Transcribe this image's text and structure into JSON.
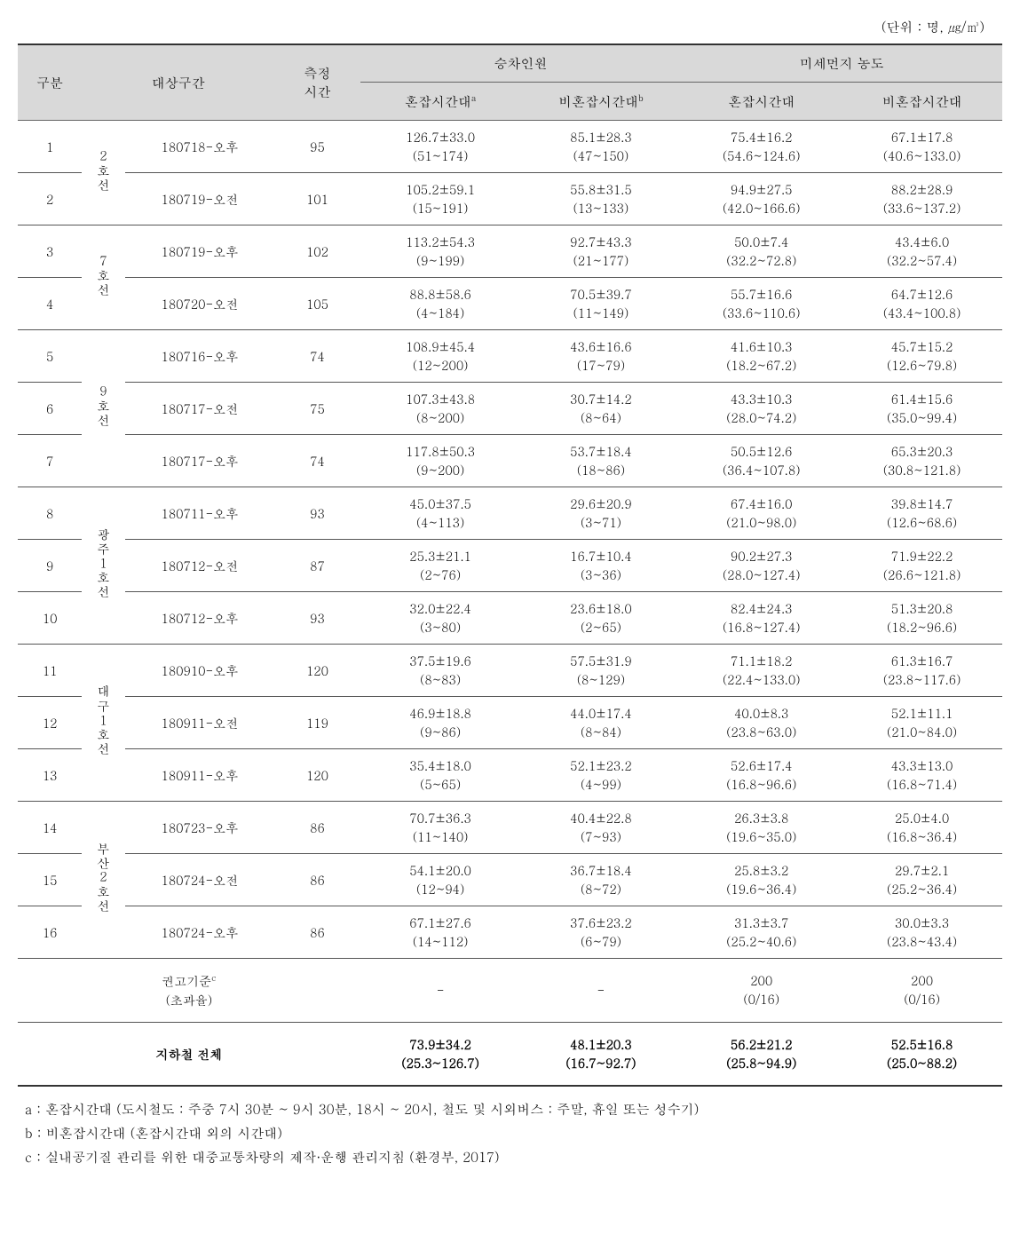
{
  "unit_label": "(단위 : 명, ㎍/㎥)",
  "headers": {
    "category": "구분",
    "section": "대상구간",
    "measure_time": "측정\n시간",
    "passengers": "승차인원",
    "pm": "미세먼지 농도",
    "peak_sup_a": "혼잡시간대",
    "sup_a": "a",
    "offpeak_sup_b": "비혼잡시간대",
    "sup_b": "b",
    "peak": "혼잡시간대",
    "offpeak": "비혼잡시간대"
  },
  "lines": {
    "l2": "2호선",
    "l7": "7호선",
    "l9": "9호선",
    "gj1": "광주1호선",
    "dg1": "대구1호선",
    "bs2": "부산2호선"
  },
  "rows": [
    {
      "no": "1",
      "session": "180718-오후",
      "time": "95",
      "p_peak_top": "126.7±33.0",
      "p_peak_bot": "(51~174)",
      "p_off_top": "85.1±28.3",
      "p_off_bot": "(47~150)",
      "pm_peak_top": "75.4±16.2",
      "pm_peak_bot": "(54.6~124.6)",
      "pm_off_top": "67.1±17.8",
      "pm_off_bot": "(40.6~133.0)"
    },
    {
      "no": "2",
      "session": "180719-오전",
      "time": "101",
      "p_peak_top": "105.2±59.1",
      "p_peak_bot": "(15~191)",
      "p_off_top": "55.8±31.5",
      "p_off_bot": "(13~133)",
      "pm_peak_top": "94.9±27.5",
      "pm_peak_bot": "(42.0~166.6)",
      "pm_off_top": "88.2±28.9",
      "pm_off_bot": "(33.6~137.2)"
    },
    {
      "no": "3",
      "session": "180719-오후",
      "time": "102",
      "p_peak_top": "113.2±54.3",
      "p_peak_bot": "(9~199)",
      "p_off_top": "92.7±43.3",
      "p_off_bot": "(21~177)",
      "pm_peak_top": "50.0±7.4",
      "pm_peak_bot": "(32.2~72.8)",
      "pm_off_top": "43.4±6.0",
      "pm_off_bot": "(32.2~57.4)"
    },
    {
      "no": "4",
      "session": "180720-오전",
      "time": "105",
      "p_peak_top": "88.8±58.6",
      "p_peak_bot": "(4~184)",
      "p_off_top": "70.5±39.7",
      "p_off_bot": "(11~149)",
      "pm_peak_top": "55.7±16.6",
      "pm_peak_bot": "(33.6~110.6)",
      "pm_off_top": "64.7±12.6",
      "pm_off_bot": "(43.4~100.8)"
    },
    {
      "no": "5",
      "session": "180716-오후",
      "time": "74",
      "p_peak_top": "108.9±45.4",
      "p_peak_bot": "(12~200)",
      "p_off_top": "43.6±16.6",
      "p_off_bot": "(17~79)",
      "pm_peak_top": "41.6±10.3",
      "pm_peak_bot": "(18.2~67.2)",
      "pm_off_top": "45.7±15.2",
      "pm_off_bot": "(12.6~79.8)"
    },
    {
      "no": "6",
      "session": "180717-오전",
      "time": "75",
      "p_peak_top": "107.3±43.8",
      "p_peak_bot": "(8~200)",
      "p_off_top": "30.7±14.2",
      "p_off_bot": "(8~64)",
      "pm_peak_top": "43.3±10.3",
      "pm_peak_bot": "(28.0~74.2)",
      "pm_off_top": "61.4±15.6",
      "pm_off_bot": "(35.0~99.4)"
    },
    {
      "no": "7",
      "session": "180717-오후",
      "time": "74",
      "p_peak_top": "117.8±50.3",
      "p_peak_bot": "(9~200)",
      "p_off_top": "53.7±18.4",
      "p_off_bot": "(18~86)",
      "pm_peak_top": "50.5±12.6",
      "pm_peak_bot": "(36.4~107.8)",
      "pm_off_top": "65.3±20.3",
      "pm_off_bot": "(30.8~121.8)"
    },
    {
      "no": "8",
      "session": "180711-오후",
      "time": "93",
      "p_peak_top": "45.0±37.5",
      "p_peak_bot": "(4~113)",
      "p_off_top": "29.6±20.9",
      "p_off_bot": "(3~71)",
      "pm_peak_top": "67.4±16.0",
      "pm_peak_bot": "(21.0~98.0)",
      "pm_off_top": "39.8±14.7",
      "pm_off_bot": "(12.6~68.6)"
    },
    {
      "no": "9",
      "session": "180712-오전",
      "time": "87",
      "p_peak_top": "25.3±21.1",
      "p_peak_bot": "(2~76)",
      "p_off_top": "16.7±10.4",
      "p_off_bot": "(3~36)",
      "pm_peak_top": "90.2±27.3",
      "pm_peak_bot": "(28.0~127.4)",
      "pm_off_top": "71.9±22.2",
      "pm_off_bot": "(26.6~121.8)"
    },
    {
      "no": "10",
      "session": "180712-오후",
      "time": "93",
      "p_peak_top": "32.0±22.4",
      "p_peak_bot": "(3~80)",
      "p_off_top": "23.6±18.0",
      "p_off_bot": "(2~65)",
      "pm_peak_top": "82.4±24.3",
      "pm_peak_bot": "(16.8~127.4)",
      "pm_off_top": "51.3±20.8",
      "pm_off_bot": "(18.2~96.6)"
    },
    {
      "no": "11",
      "session": "180910-오후",
      "time": "120",
      "p_peak_top": "37.5±19.6",
      "p_peak_bot": "(8~83)",
      "p_off_top": "57.5±31.9",
      "p_off_bot": "(8~129)",
      "pm_peak_top": "71.1±18.2",
      "pm_peak_bot": "(22.4~133.0)",
      "pm_off_top": "61.3±16.7",
      "pm_off_bot": "(23.8~117.6)"
    },
    {
      "no": "12",
      "session": "180911-오전",
      "time": "119",
      "p_peak_top": "46.9±18.8",
      "p_peak_bot": "(9~86)",
      "p_off_top": "44.0±17.4",
      "p_off_bot": "(8~84)",
      "pm_peak_top": "40.0±8.3",
      "pm_peak_bot": "(23.8~63.0)",
      "pm_off_top": "52.1±11.1",
      "pm_off_bot": "(21.0~84.0)"
    },
    {
      "no": "13",
      "session": "180911-오후",
      "time": "120",
      "p_peak_top": "35.4±18.0",
      "p_peak_bot": "(5~65)",
      "p_off_top": "52.1±23.2",
      "p_off_bot": "(4~99)",
      "pm_peak_top": "52.6±17.4",
      "pm_peak_bot": "(16.8~96.6)",
      "pm_off_top": "43.3±13.0",
      "pm_off_bot": "(16.8~71.4)"
    },
    {
      "no": "14",
      "session": "180723-오후",
      "time": "86",
      "p_peak_top": "70.7±36.3",
      "p_peak_bot": "(11~140)",
      "p_off_top": "40.4±22.8",
      "p_off_bot": "(7~93)",
      "pm_peak_top": "26.3±3.8",
      "pm_peak_bot": "(19.6~35.0)",
      "pm_off_top": "25.0±4.0",
      "pm_off_bot": "(16.8~36.4)"
    },
    {
      "no": "15",
      "session": "180724-오전",
      "time": "86",
      "p_peak_top": "54.1±20.0",
      "p_peak_bot": "(12~94)",
      "p_off_top": "36.7±18.4",
      "p_off_bot": "(8~72)",
      "pm_peak_top": "25.8±3.2",
      "pm_peak_bot": "(19.6~36.4)",
      "pm_off_top": "29.7±2.1",
      "pm_off_bot": "(25.2~36.4)"
    },
    {
      "no": "16",
      "session": "180724-오후",
      "time": "86",
      "p_peak_top": "67.1±27.6",
      "p_peak_bot": "(14~112)",
      "p_off_top": "37.6±23.2",
      "p_off_bot": "(6~79)",
      "pm_peak_top": "31.3±3.7",
      "pm_peak_bot": "(25.2~40.6)",
      "pm_off_top": "30.0±3.3",
      "pm_off_bot": "(23.8~43.4)"
    }
  ],
  "guideline": {
    "label_top": "권고기준",
    "sup_c": "c",
    "label_bot": "(초과율)",
    "p_peak": "-",
    "p_off": "-",
    "pm_peak_top": "200",
    "pm_peak_bot": "(0/16)",
    "pm_off_top": "200",
    "pm_off_bot": "(0/16)"
  },
  "total": {
    "label": "지하철 전체",
    "p_peak_top": "73.9±34.2",
    "p_peak_bot": "(25.3~126.7)",
    "p_off_top": "48.1±20.3",
    "p_off_bot": "(16.7~92.7)",
    "pm_peak_top": "56.2±21.2",
    "pm_peak_bot": "(25.8~94.9)",
    "pm_off_top": "52.5±16.8",
    "pm_off_bot": "(25.0~88.2)"
  },
  "footnotes": {
    "a": "a : 혼잡시간대 (도시철도 : 주중 7시 30분 ~ 9시 30분, 18시 ~ 20시, 철도 및 시외버스 : 주말, 휴일 또는 성수기)",
    "b": "b : 비혼잡시간대 (혼잡시간대 외의 시간대)",
    "c": "c : 실내공기질 관리를 위한 대중교통차량의 제작·운행 관리지침 (환경부, 2017)"
  }
}
